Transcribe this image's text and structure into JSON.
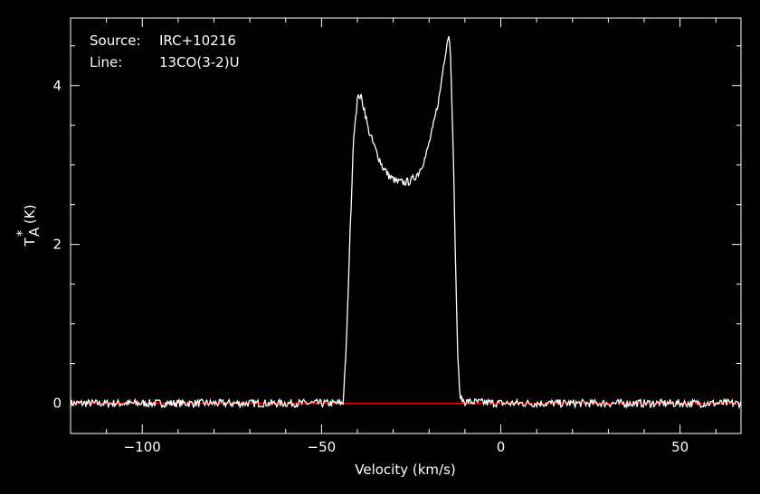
{
  "chart_data": {
    "type": "line",
    "source_label": "Source:",
    "source_value": "IRC+10216",
    "line_label": "Line:",
    "line_value": "13CO(3-2)U",
    "xlabel": "Velocity (km/s)",
    "ylabel_main": "T",
    "ylabel_sup": "*",
    "ylabel_sub": "A",
    "ylabel_unit": "(K)",
    "xlim": [
      -120,
      67
    ],
    "ylim": [
      -0.38,
      4.85
    ],
    "xticks_major": [
      -100,
      -50,
      0,
      50
    ],
    "xtick_labels": [
      "−100",
      "−50",
      "0",
      "50"
    ],
    "yticks_major": [
      0,
      2,
      4
    ],
    "ytick_labels": [
      "0",
      "2",
      "4"
    ],
    "baseline_color": "#ff0000",
    "line_color": "#ffffff",
    "background": "#000000",
    "series": [
      {
        "x": [
          -120,
          -60,
          -44,
          -43,
          -42,
          -41,
          -40,
          -39.5,
          -39,
          -38,
          -37,
          -35,
          -33,
          -31,
          -29,
          -27,
          -25,
          -23,
          -21,
          -19,
          -17,
          -16,
          -15,
          -14.5,
          -14,
          -13.5,
          -13,
          -12.5,
          -12,
          -11.5,
          -11,
          -10,
          0,
          67
        ],
        "y": [
          0,
          0,
          0,
          0.8,
          2.2,
          3.4,
          3.82,
          3.88,
          3.85,
          3.7,
          3.45,
          3.2,
          2.98,
          2.85,
          2.79,
          2.78,
          2.8,
          2.9,
          3.1,
          3.45,
          3.9,
          4.25,
          4.55,
          4.65,
          4.4,
          3.6,
          2.6,
          1.5,
          0.6,
          0.15,
          0.05,
          0.02,
          0,
          0
        ]
      }
    ]
  }
}
